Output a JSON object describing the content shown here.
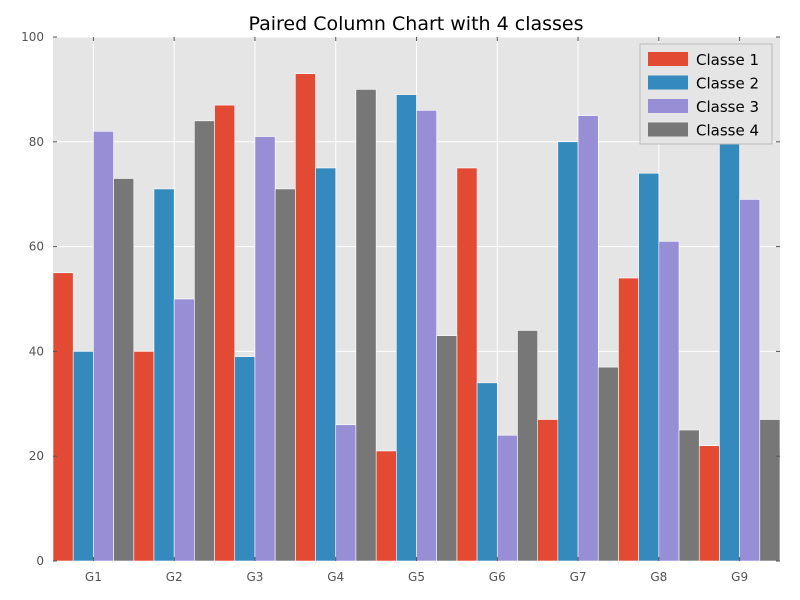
{
  "chart_data": {
    "type": "bar",
    "title": "Paired Column Chart with 4 classes",
    "xlabel": "",
    "ylabel": "",
    "categories": [
      "G1",
      "G2",
      "G3",
      "G4",
      "G5",
      "G6",
      "G7",
      "G8",
      "G9"
    ],
    "ylim": [
      0,
      100
    ],
    "yticks": [
      0,
      20,
      40,
      60,
      80,
      100
    ],
    "grid": true,
    "legend_position": "top-right",
    "series": [
      {
        "name": "Classe 1",
        "color": "#E24A33",
        "values": [
          55,
          40,
          87,
          93,
          21,
          75,
          27,
          54,
          22
        ]
      },
      {
        "name": "Classe 2",
        "color": "#348ABD",
        "values": [
          40,
          71,
          39,
          75,
          89,
          34,
          80,
          74,
          80
        ]
      },
      {
        "name": "Classe 3",
        "color": "#988ED5",
        "values": [
          82,
          50,
          81,
          26,
          86,
          24,
          85,
          61,
          69
        ]
      },
      {
        "name": "Classe 4",
        "color": "#777777",
        "values": [
          73,
          84,
          71,
          90,
          43,
          44,
          37,
          25,
          27
        ]
      }
    ]
  }
}
